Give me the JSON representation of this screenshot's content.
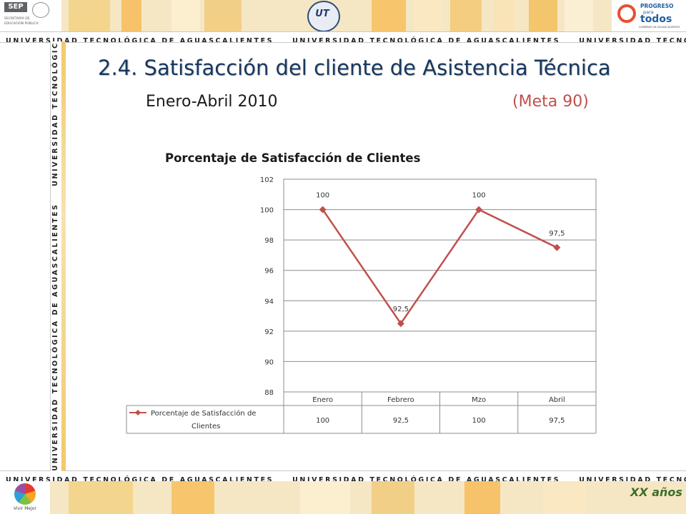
{
  "header": {
    "banner_text": "UNIVERSIDAD TECNOLÓGICA DE AGUASCALIENTES",
    "sep_logo": "SEP",
    "sep_caption_1": "SECRETARÍA DE",
    "sep_caption_2": "EDUCACIÓN PÚBLICA",
    "right_logo_1": "PROGRESO",
    "right_logo_2": "para",
    "right_logo_3": "todos",
    "right_logo_caption": "GOBIERNO DE AGUASCALIENTES",
    "center_logo": "UT"
  },
  "footer": {
    "left_logo_caption": "Vivir Mejor",
    "right_logo": "XX años"
  },
  "slide": {
    "title": "2.4. Satisfacción del cliente de Asistencia Técnica",
    "subtitle": "Enero-Abril 2010",
    "goal": "(Meta 90)"
  },
  "colors": {
    "title": "#17375e",
    "goal": "#c0504d",
    "series": "#c0504d",
    "banner_band": "#f6e7c4"
  },
  "chart_data": {
    "type": "line",
    "title": "Porcentaje de Satisfacción de Clientes",
    "categories": [
      "Enero",
      "Febrero",
      "Mzo",
      "Abril"
    ],
    "series": [
      {
        "name": "Porcentaje de Satisfacción de Clientes",
        "values": [
          100,
          92.5,
          100,
          97.5
        ],
        "labels": [
          "100",
          "92,5",
          "100",
          "97,5"
        ]
      }
    ],
    "yticks": [
      "88",
      "90",
      "92",
      "94",
      "96",
      "98",
      "100",
      "102"
    ],
    "ylim": [
      88,
      102
    ],
    "grid": true,
    "data_table": true,
    "marker": "diamond"
  }
}
